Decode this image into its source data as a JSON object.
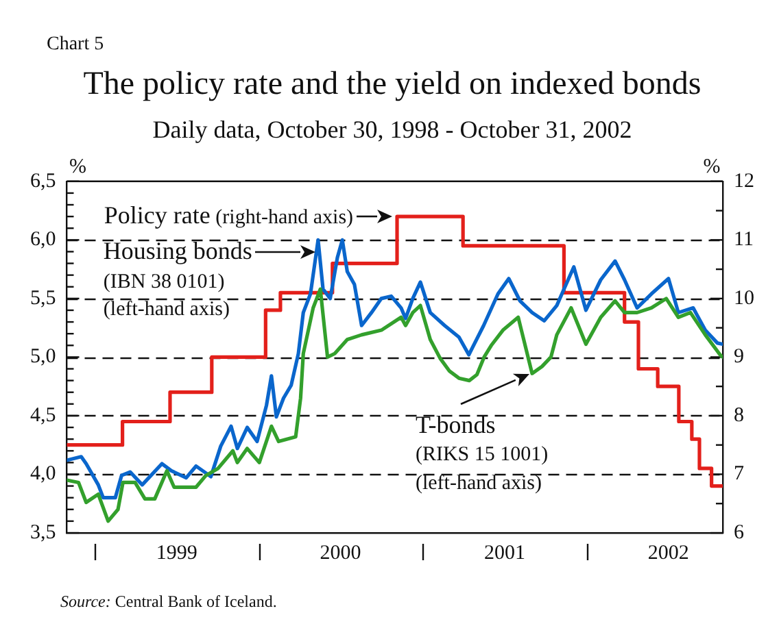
{
  "chart_data": {
    "type": "line",
    "title": "The policy rate and the yield on indexed bonds",
    "subtitle": "Daily data, October 30, 1998 - October 31, 2002",
    "ylabel": "%",
    "y2label": "%",
    "xlim": [
      "1998-10-30",
      "2002-10-31"
    ],
    "xticks": [
      {
        "value": "1999-01-01",
        "label": null
      },
      {
        "value": "1999-07-02",
        "label": "1999"
      },
      {
        "value": "2000-01-01",
        "label": null
      },
      {
        "value": "2000-07-01",
        "label": "2000"
      },
      {
        "value": "2001-01-01",
        "label": null
      },
      {
        "value": "2001-07-02",
        "label": "2001"
      },
      {
        "value": "2002-01-01",
        "label": null
      },
      {
        "value": "2002-07-02",
        "label": "2002"
      }
    ],
    "ylim": [
      3.5,
      6.5
    ],
    "yticks": [
      {
        "value": 3.5,
        "label": "3,5"
      },
      {
        "value": 3.6,
        "label": null
      },
      {
        "value": 3.7,
        "label": null
      },
      {
        "value": 3.8,
        "label": null
      },
      {
        "value": 3.9,
        "label": null
      },
      {
        "value": 4,
        "label": "4,0"
      },
      {
        "value": 4.1,
        "label": null
      },
      {
        "value": 4.2,
        "label": null
      },
      {
        "value": 4.3,
        "label": null
      },
      {
        "value": 4.4,
        "label": null
      },
      {
        "value": 4.5,
        "label": "4,5"
      },
      {
        "value": 4.6,
        "label": null
      },
      {
        "value": 4.7,
        "label": null
      },
      {
        "value": 4.8,
        "label": null
      },
      {
        "value": 4.9,
        "label": null
      },
      {
        "value": 5,
        "label": "5,0"
      },
      {
        "value": 5.1,
        "label": null
      },
      {
        "value": 5.2,
        "label": null
      },
      {
        "value": 5.3,
        "label": null
      },
      {
        "value": 5.4,
        "label": null
      },
      {
        "value": 5.5,
        "label": "5,5"
      },
      {
        "value": 5.6,
        "label": null
      },
      {
        "value": 5.7,
        "label": null
      },
      {
        "value": 5.8,
        "label": null
      },
      {
        "value": 5.9,
        "label": null
      },
      {
        "value": 6,
        "label": "6,0"
      },
      {
        "value": 6.1,
        "label": null
      },
      {
        "value": 6.2,
        "label": null
      },
      {
        "value": 6.3,
        "label": null
      },
      {
        "value": 6.4,
        "label": null
      },
      {
        "value": 6.5,
        "label": "6,5"
      }
    ],
    "y2lim": [
      6,
      12
    ],
    "y2ticks": [
      6,
      {
        "value": 6.5,
        "label": null
      },
      7,
      {
        "value": 7.5,
        "label": null
      },
      8,
      {
        "value": 8.5,
        "label": null
      },
      9,
      {
        "value": 9.5,
        "label": null
      },
      10,
      {
        "value": 10.5,
        "label": null
      },
      11,
      {
        "value": 11.5,
        "label": null
      },
      12
    ],
    "grid": "y",
    "legend": false,
    "marker": "none",
    "series": [
      {
        "type": "step",
        "axis": "y2",
        "color": "#e3201b",
        "x": [
          "1998-10-30",
          "1999-03-03",
          "1999-06-17",
          "1999-09-18",
          "2000-01-16",
          "2000-02-18",
          "2000-06-13",
          "2000-11-04",
          "2001-03-31",
          "2001-11-11",
          "2002-03-26",
          "2002-04-26",
          "2002-06-08",
          "2002-07-25",
          "2002-08-23",
          "2002-09-09",
          "2002-10-06",
          "2002-10-31"
        ],
        "values": [
          7.5,
          7.9,
          8.4,
          9.0,
          9.8,
          10.1,
          10.6,
          11.4,
          10.9,
          10.1,
          9.6,
          8.8,
          8.5,
          7.9,
          7.6,
          7.1,
          6.8,
          6.8
        ]
      },
      {
        "color": "#0a66cc",
        "x": [
          "1998-10-30",
          "1998-12-01",
          "1998-12-12",
          "1999-01-08",
          "1999-01-19",
          "1999-02-15",
          "1999-03-01",
          "1999-03-20",
          "1999-04-16",
          "1999-05-30",
          "1999-06-20",
          "1999-07-23",
          "1999-08-14",
          "1999-09-16",
          "1999-10-08",
          "1999-10-31",
          "1999-11-14",
          "1999-12-06",
          "1999-12-28",
          "2000-01-18",
          "2000-01-29",
          "2000-02-09",
          "2000-02-25",
          "2000-03-13",
          "2000-03-29",
          "2000-04-09",
          "2000-04-25",
          "2000-05-12",
          "2000-05-23",
          "2000-06-08",
          "2000-06-24",
          "2000-07-05",
          "2000-07-16",
          "2000-08-01",
          "2000-08-17",
          "2000-09-08",
          "2000-09-30",
          "2000-10-22",
          "2000-11-13",
          "2000-11-23",
          "2000-12-09",
          "2000-12-26",
          "2001-01-17",
          "2001-02-18",
          "2001-03-22",
          "2001-04-13",
          "2001-05-16",
          "2001-06-17",
          "2001-07-11",
          "2001-08-05",
          "2001-09-01",
          "2001-09-28",
          "2001-10-26",
          "2001-11-11",
          "2001-12-03",
          "2001-12-30",
          "2002-02-01",
          "2002-03-05",
          "2002-03-26",
          "2002-04-23",
          "2002-05-25",
          "2002-07-02",
          "2002-07-24",
          "2002-08-26",
          "2002-09-22",
          "2002-10-19",
          "2002-10-31"
        ],
        "values": [
          4.12,
          4.15,
          4.09,
          3.91,
          3.8,
          3.8,
          3.99,
          4.02,
          3.91,
          4.09,
          4.03,
          3.97,
          4.07,
          3.98,
          4.24,
          4.41,
          4.22,
          4.4,
          4.28,
          4.59,
          4.84,
          4.49,
          4.65,
          4.76,
          5.03,
          5.38,
          5.54,
          6.0,
          5.58,
          5.5,
          5.85,
          6.0,
          5.73,
          5.62,
          5.27,
          5.38,
          5.5,
          5.52,
          5.42,
          5.33,
          5.5,
          5.64,
          5.38,
          5.27,
          5.17,
          5.02,
          5.27,
          5.54,
          5.67,
          5.48,
          5.38,
          5.31,
          5.44,
          5.58,
          5.77,
          5.4,
          5.66,
          5.82,
          5.66,
          5.42,
          5.54,
          5.67,
          5.38,
          5.42,
          5.23,
          5.12,
          5.11
        ]
      },
      {
        "color": "#33a02c",
        "x": [
          "1998-10-30",
          "1998-11-25",
          "1998-12-12",
          "1999-01-08",
          "1999-01-30",
          "1999-02-21",
          "1999-03-04",
          "1999-03-31",
          "1999-04-22",
          "1999-05-14",
          "1999-06-10",
          "1999-06-26",
          "1999-08-14",
          "1999-09-05",
          "1999-10-02",
          "1999-11-04",
          "1999-11-14",
          "1999-12-06",
          "2000-01-02",
          "2000-01-29",
          "2000-02-14",
          "2000-03-23",
          "2000-04-03",
          "2000-04-09",
          "2000-05-01",
          "2000-05-17",
          "2000-06-02",
          "2000-06-18",
          "2000-07-16",
          "2000-08-17",
          "2000-09-30",
          "2000-11-13",
          "2000-11-23",
          "2000-12-09",
          "2000-12-26",
          "2001-01-17",
          "2001-02-08",
          "2001-03-01",
          "2001-03-22",
          "2001-04-14",
          "2001-05-01",
          "2001-05-17",
          "2001-06-02",
          "2001-06-28",
          "2001-08-01",
          "2001-09-01",
          "2001-09-23",
          "2001-10-13",
          "2001-10-26",
          "2001-11-27",
          "2001-12-30",
          "2002-02-01",
          "2002-03-05",
          "2002-03-26",
          "2002-04-23",
          "2002-05-25",
          "2002-06-27",
          "2002-07-24",
          "2002-08-20",
          "2002-09-22",
          "2002-10-25",
          "2002-10-31"
        ],
        "values": [
          3.95,
          3.93,
          3.76,
          3.83,
          3.6,
          3.7,
          3.93,
          3.93,
          3.79,
          3.79,
          4.03,
          3.89,
          3.89,
          3.99,
          4.05,
          4.2,
          4.1,
          4.22,
          4.1,
          4.41,
          4.28,
          4.32,
          4.65,
          5.03,
          5.42,
          5.58,
          5.0,
          5.03,
          5.15,
          5.19,
          5.23,
          5.34,
          5.27,
          5.38,
          5.44,
          5.15,
          4.99,
          4.88,
          4.82,
          4.8,
          4.85,
          5.0,
          5.1,
          5.23,
          5.34,
          4.86,
          4.92,
          5.0,
          5.19,
          5.42,
          5.11,
          5.34,
          5.48,
          5.38,
          5.38,
          5.42,
          5.5,
          5.34,
          5.38,
          5.19,
          5.02,
          5.0
        ]
      }
    ],
    "annotations": [
      {
        "text": "Policy rate (right-hand axis)",
        "x": "2000-10-29",
        "y": 6.2
      },
      {
        "text": "Housing bonds\n(IBN 38 0101)\n(left-hand axis)",
        "x": "2000-05-12",
        "y": 5.9
      },
      {
        "text": "T-bonds\n(RIKS 15 1001)\n(left-hand axis)",
        "x": "2001-09-01",
        "y": 4.86
      },
      "Chart 5",
      "Source: Central Bank of Iceland."
    ]
  }
}
